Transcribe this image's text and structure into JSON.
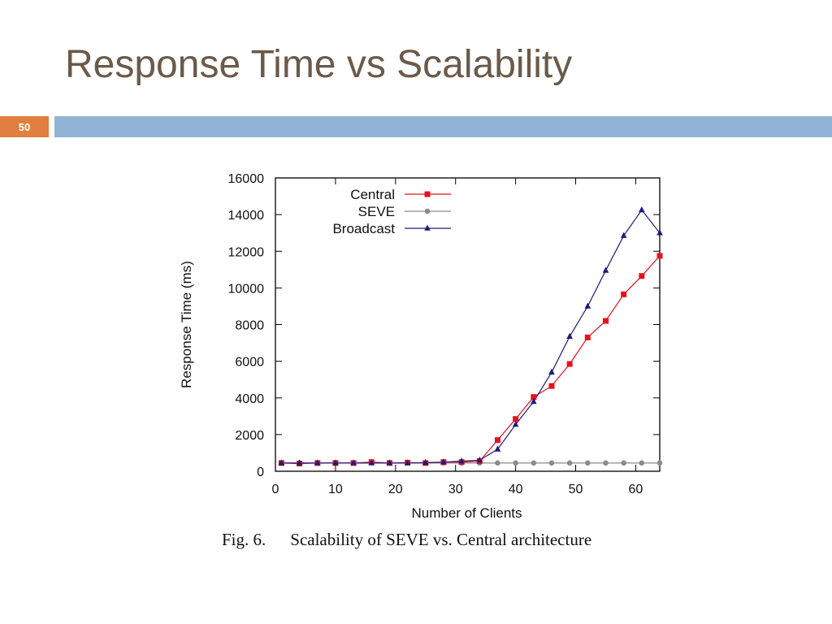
{
  "slide": {
    "title": "Response Time vs Scalability",
    "page_number": "50",
    "colors": {
      "title": "#6b5a49",
      "badge": "#e07f3f",
      "bar": "#92b4d4"
    }
  },
  "caption": {
    "label": "Fig. 6.",
    "text": "Scalability of SEVE vs. Central architecture"
  },
  "chart_data": {
    "type": "line",
    "title": "",
    "xlabel": "Number of Clients",
    "ylabel": "Response Time (ms)",
    "xlim": [
      0,
      64
    ],
    "ylim": [
      0,
      16000
    ],
    "xticks": [
      0,
      10,
      20,
      30,
      40,
      50,
      60
    ],
    "yticks": [
      0,
      2000,
      4000,
      6000,
      8000,
      10000,
      12000,
      14000,
      16000
    ],
    "grid": false,
    "legend_position": "top-left",
    "series": [
      {
        "name": "Central",
        "color": "#e8101e",
        "marker": "square",
        "x": [
          1,
          4,
          7,
          10,
          13,
          16,
          19,
          22,
          25,
          28,
          31,
          34,
          37,
          40,
          43,
          46,
          49,
          52,
          55,
          58,
          61,
          64
        ],
        "y": [
          450,
          420,
          450,
          450,
          450,
          500,
          450,
          470,
          450,
          500,
          500,
          550,
          1700,
          2850,
          4050,
          4650,
          5850,
          7300,
          8200,
          9650,
          10650,
          11750
        ]
      },
      {
        "name": "SEVE",
        "color": "#8c8c8c",
        "marker": "circle",
        "x": [
          1,
          4,
          7,
          10,
          13,
          16,
          19,
          22,
          25,
          28,
          31,
          34,
          37,
          40,
          43,
          46,
          49,
          52,
          55,
          58,
          61,
          64
        ],
        "y": [
          450,
          450,
          450,
          450,
          450,
          450,
          450,
          450,
          450,
          450,
          450,
          450,
          450,
          450,
          450,
          450,
          450,
          450,
          450,
          450,
          450,
          450
        ]
      },
      {
        "name": "Broadcast",
        "color": "#1c1c7a",
        "marker": "triangle",
        "x": [
          1,
          4,
          7,
          10,
          13,
          16,
          19,
          22,
          25,
          28,
          31,
          34,
          37,
          40,
          43,
          46,
          49,
          52,
          55,
          58,
          61,
          64
        ],
        "y": [
          450,
          450,
          450,
          450,
          450,
          450,
          450,
          450,
          470,
          500,
          550,
          600,
          1200,
          2550,
          3800,
          5400,
          7350,
          9000,
          10950,
          12850,
          14250,
          13000
        ]
      }
    ]
  }
}
